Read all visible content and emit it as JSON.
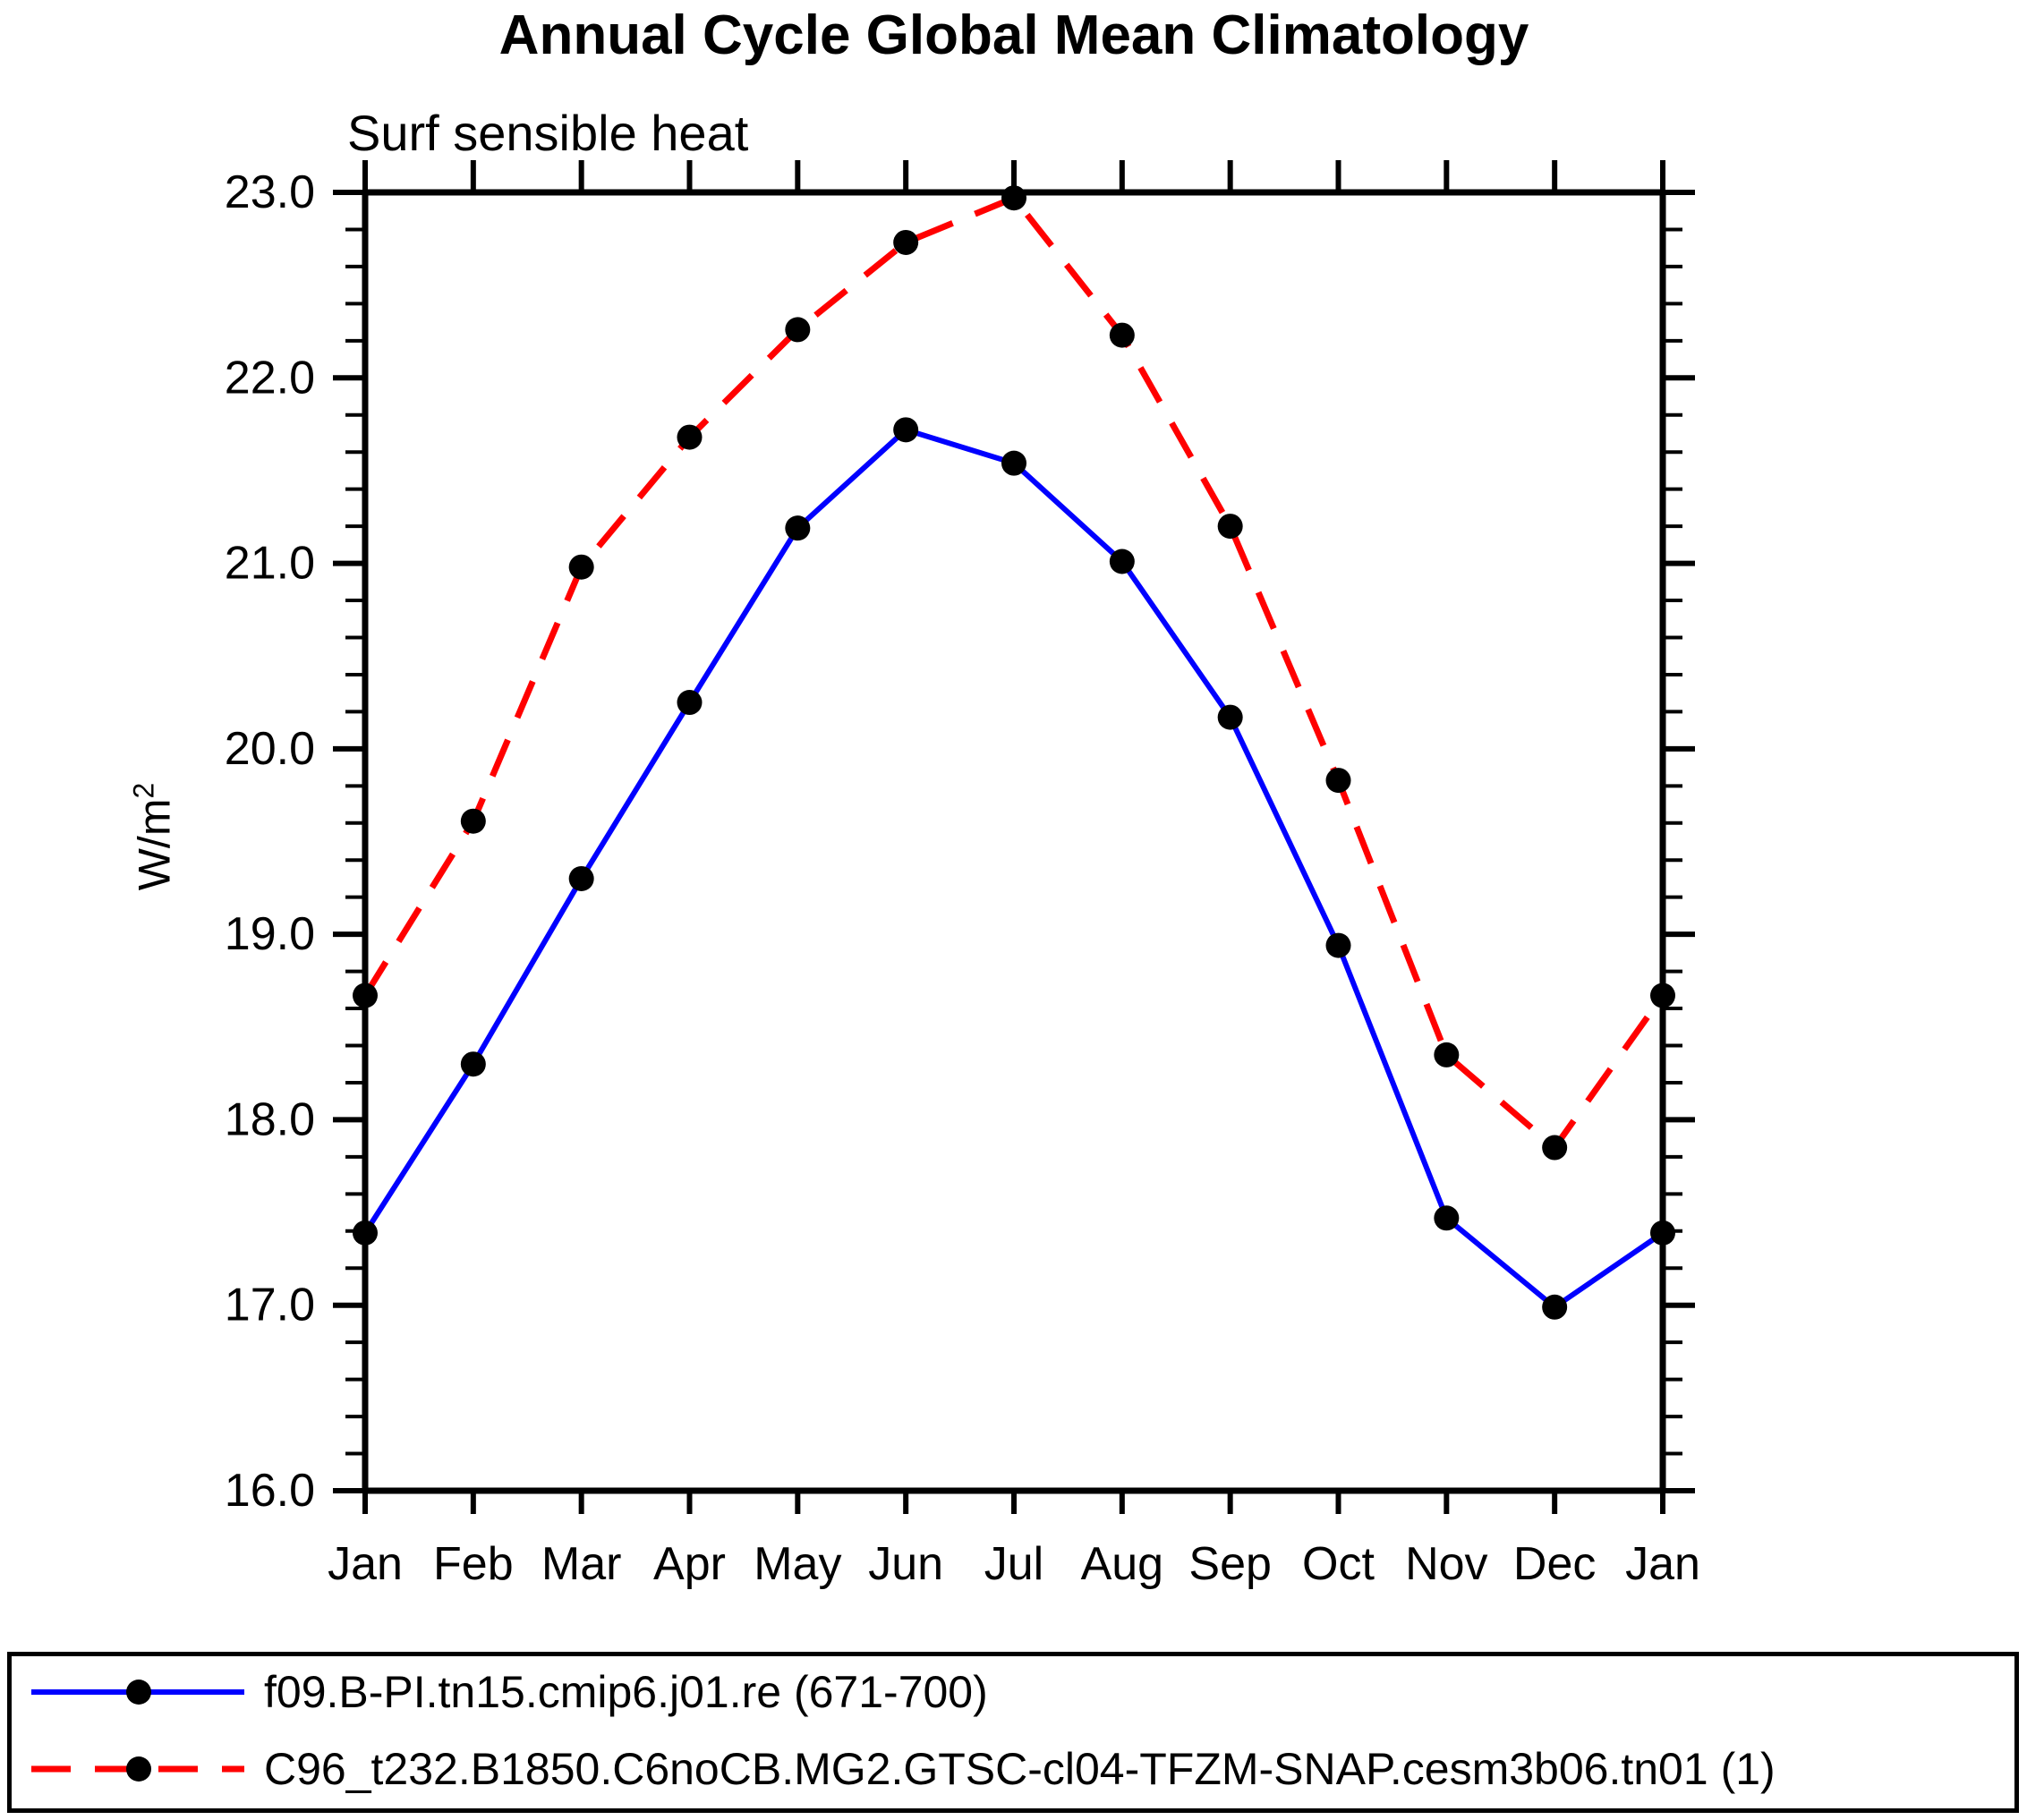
{
  "title": "Annual Cycle Global Mean Climatology",
  "subtitle": "Surf sensible heat",
  "y_axis": {
    "label_base": "W/m",
    "label_sup": "2",
    "unit_label": "W/m²",
    "min": 16.0,
    "max": 23.0,
    "ticks": [
      23.0,
      22.0,
      21.0,
      20.0,
      19.0,
      18.0,
      17.0,
      16.0
    ],
    "minor_tick_step": 0.2
  },
  "x_axis": {
    "labels": [
      "Jan",
      "Feb",
      "Mar",
      "Apr",
      "May",
      "Jun",
      "Jul",
      "Aug",
      "Sep",
      "Oct",
      "Nov",
      "Dec",
      "Jan"
    ]
  },
  "chart_data": {
    "type": "line",
    "title": "Annual Cycle Global Mean Climatology",
    "subtitle": "Surf sensible heat",
    "xlabel": "",
    "ylabel": "W/m²",
    "ylim": [
      16.0,
      23.0
    ],
    "grid": false,
    "legend_position": "bottom",
    "categories": [
      "Jan",
      "Feb",
      "Mar",
      "Apr",
      "May",
      "Jun",
      "Jul",
      "Aug",
      "Sep",
      "Oct",
      "Nov",
      "Dec",
      "Jan"
    ],
    "series": [
      {
        "name": "f09.B-PI.tn15.cmip6.j01.re (671-700)",
        "color": "#0000ff",
        "line_style": "solid",
        "marker": "filled-circle",
        "marker_color": "#000000",
        "values": [
          17.39,
          18.3,
          19.3,
          20.25,
          21.19,
          21.72,
          21.54,
          21.01,
          20.17,
          18.94,
          17.47,
          16.99,
          17.39
        ]
      },
      {
        "name": "C96_t232.B1850.C6noCB.MG2.GTSC-cl04-TFZM-SNAP.cesm3b06.tn01 (1)",
        "color": "#ff0000",
        "line_style": "dashed",
        "marker": "filled-circle",
        "marker_color": "#000000",
        "values": [
          18.67,
          19.61,
          20.98,
          21.68,
          22.26,
          22.73,
          22.97,
          22.23,
          21.2,
          19.83,
          18.35,
          17.85,
          18.67
        ]
      }
    ]
  }
}
